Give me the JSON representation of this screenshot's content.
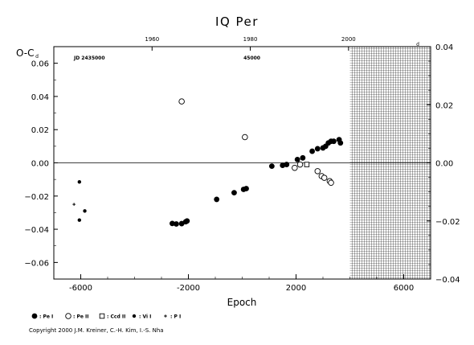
{
  "chart_data": {
    "type": "scatter",
    "title": "IQ Per",
    "ylabel_left": "O-C",
    "ylabel_left_superscript": "d",
    "ylabel_right_superscript": "d",
    "xlabel": "Epoch",
    "xlim": [
      -7000,
      7000
    ],
    "ylim": [
      -0.07,
      0.07
    ],
    "right_ylim": [
      -0.04,
      0.04
    ],
    "x_ticks": [
      "-6000",
      "-2000",
      "2000",
      "6000"
    ],
    "y_ticks": [
      "0.06",
      "0.04",
      "0.02",
      "0.00",
      "−0.02",
      "−0.04",
      "−0.06"
    ],
    "right_y_ticks": [
      "0.04",
      "0.02",
      "0.00",
      "−0.02",
      "−0.04"
    ],
    "top_axis_ticks": [
      {
        "label": "1960",
        "epoch": -3350
      },
      {
        "label": "1980",
        "epoch": 300
      },
      {
        "label": "2000",
        "epoch": 3950
      }
    ],
    "jd_label_left": "JD 2435000",
    "jd_label_right": "45000",
    "future_region_start_epoch": 4000,
    "grid": false,
    "series": [
      {
        "name": "Pe I",
        "marker": "filled-circle-large",
        "points": [
          [
            -2600,
            -0.0365
          ],
          [
            -2450,
            -0.0368
          ],
          [
            -2250,
            -0.0366
          ],
          [
            -2100,
            -0.0355
          ],
          [
            -2050,
            -0.035
          ],
          [
            -950,
            -0.022
          ],
          [
            -300,
            -0.018
          ],
          [
            50,
            -0.016
          ],
          [
            150,
            -0.0155
          ],
          [
            1100,
            -0.002
          ],
          [
            1500,
            -0.0015
          ],
          [
            1650,
            -0.001
          ],
          [
            2050,
            0.002
          ],
          [
            2250,
            0.003
          ],
          [
            2600,
            0.007
          ],
          [
            2800,
            0.0085
          ],
          [
            3000,
            0.009
          ],
          [
            3100,
            0.01
          ],
          [
            3200,
            0.012
          ],
          [
            3300,
            0.013
          ],
          [
            3400,
            0.013
          ],
          [
            3600,
            0.014
          ],
          [
            3650,
            0.012
          ]
        ]
      },
      {
        "name": "Pe II",
        "marker": "open-circle",
        "points": [
          [
            -2250,
            0.037
          ],
          [
            100,
            0.0155
          ],
          [
            1950,
            -0.003
          ],
          [
            2150,
            -0.001
          ],
          [
            2800,
            -0.005
          ],
          [
            2950,
            -0.008
          ],
          [
            3050,
            -0.009
          ],
          [
            3250,
            -0.011
          ],
          [
            3300,
            -0.012
          ]
        ]
      },
      {
        "name": "Ccd II",
        "marker": "open-square",
        "points": [
          [
            2400,
            -0.001
          ]
        ]
      },
      {
        "name": "Vi I",
        "marker": "filled-circle-small",
        "points": [
          [
            -6050,
            -0.0115
          ],
          [
            -6050,
            -0.0345
          ],
          [
            -5850,
            -0.029
          ]
        ]
      },
      {
        "name": "P I",
        "marker": "plus",
        "points": [
          [
            -6250,
            -0.025
          ]
        ]
      }
    ],
    "legend": {
      "placement": "below-plot",
      "entries": [
        {
          "symbol": "filled-circle-large",
          "label": ": Pe I"
        },
        {
          "symbol": "open-circle",
          "label": ": Pe II"
        },
        {
          "symbol": "open-square",
          "label": ": Ccd II"
        },
        {
          "symbol": "filled-circle-small",
          "label": ": Vi I"
        },
        {
          "symbol": "plus",
          "label": ": P I"
        }
      ]
    }
  },
  "copyright": "Copyright 2000 J.M. Kreiner, C.-H. Kim, I.-S. Nha"
}
